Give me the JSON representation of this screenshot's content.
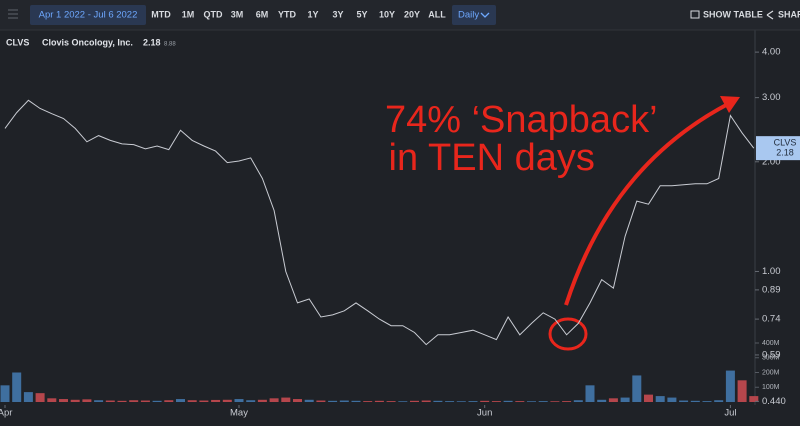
{
  "toolbar": {
    "date_range": "Apr 1 2022 - Jul 6 2022",
    "ranges": [
      "MTD",
      "1M",
      "QTD",
      "3M",
      "6M",
      "YTD",
      "1Y",
      "3Y",
      "5Y",
      "10Y",
      "20Y",
      "ALL"
    ],
    "interval": "Daily",
    "show_table": "SHOW TABLE",
    "share": "SHARE"
  },
  "chart_data": {
    "type": "line",
    "legend": {
      "symbol": "CLVS",
      "name": "Clovis Oncology, Inc.",
      "price": 2.18,
      "extra": "8.88"
    },
    "annotations": [
      "74% ‘Snapback’",
      " in TEN days"
    ],
    "categories": [
      "Apr",
      null,
      null,
      null,
      null,
      null,
      null,
      null,
      null,
      null,
      null,
      null,
      null,
      null,
      null,
      null,
      null,
      null,
      null,
      null,
      "May",
      null,
      null,
      null,
      null,
      null,
      null,
      null,
      null,
      null,
      null,
      null,
      null,
      null,
      null,
      null,
      null,
      null,
      null,
      null,
      null,
      "Jun",
      null,
      null,
      null,
      null,
      null,
      null,
      null,
      null,
      null,
      null,
      null,
      null,
      null,
      null,
      null,
      null,
      null,
      null,
      null,
      null,
      "Jul",
      null,
      null
    ],
    "series": [
      {
        "name": "CLVS",
        "color": "#c9ccd3",
        "values": [
          2.47,
          2.73,
          2.95,
          2.8,
          2.71,
          2.63,
          2.47,
          2.27,
          2.36,
          2.29,
          2.24,
          2.23,
          2.17,
          2.21,
          2.16,
          2.44,
          2.29,
          2.21,
          2.14,
          1.99,
          2.01,
          2.05,
          1.8,
          1.47,
          1.0,
          0.82,
          0.84,
          0.75,
          0.76,
          0.78,
          0.82,
          0.78,
          0.74,
          0.71,
          0.71,
          0.68,
          0.63,
          0.67,
          0.67,
          0.68,
          0.69,
          0.67,
          0.65,
          0.75,
          0.67,
          0.72,
          0.77,
          0.74,
          0.67,
          0.72,
          0.82,
          0.95,
          0.9,
          1.25,
          1.56,
          1.53,
          1.72,
          1.72,
          1.73,
          1.74,
          1.74,
          1.8,
          2.68,
          2.4,
          2.18
        ]
      }
    ],
    "log_scale": true,
    "ylim": [
      0.43,
      4.6
    ],
    "yticks": [
      {
        "value": 4,
        "label": "4.00"
      },
      {
        "value": 3,
        "label": "3.00"
      },
      {
        "value": 2,
        "label": "2.00"
      },
      {
        "value": 1,
        "label": "1.00"
      },
      0.89,
      0.74,
      0.59,
      {
        "value": 0.44,
        "label": "0.440"
      }
    ],
    "volume": {
      "up_color": "#3f6f9f",
      "down_color": "#b5464c",
      "values": [
        113000000,
        200000000,
        67000000,
        60000000,
        25000000,
        20000000,
        15000000,
        18000000,
        12000000,
        10000000,
        8000000,
        12000000,
        10000000,
        8000000,
        12000000,
        20000000,
        12000000,
        10000000,
        14000000,
        15000000,
        20000000,
        12000000,
        15000000,
        25000000,
        30000000,
        20000000,
        15000000,
        10000000,
        8000000,
        10000000,
        8000000,
        6000000,
        8000000,
        6000000,
        5000000,
        8000000,
        10000000,
        8000000,
        6000000,
        5000000,
        6000000,
        8000000,
        6000000,
        8000000,
        6000000,
        5000000,
        6000000,
        5000000,
        6000000,
        12000000,
        113000000,
        15000000,
        25000000,
        30000000,
        180000000,
        50000000,
        40000000,
        30000000,
        10000000,
        8000000,
        6000000,
        12000000,
        213000000,
        147000000,
        40000000
      ],
      "ylim": [
        0,
        400000000
      ],
      "yticks": [
        {
          "value": 400000000,
          "label": "400M"
        },
        {
          "value": 300000000,
          "label": "300M"
        },
        {
          "value": 200000000,
          "label": "200M"
        },
        {
          "value": 100000000,
          "label": "100M"
        }
      ]
    }
  }
}
